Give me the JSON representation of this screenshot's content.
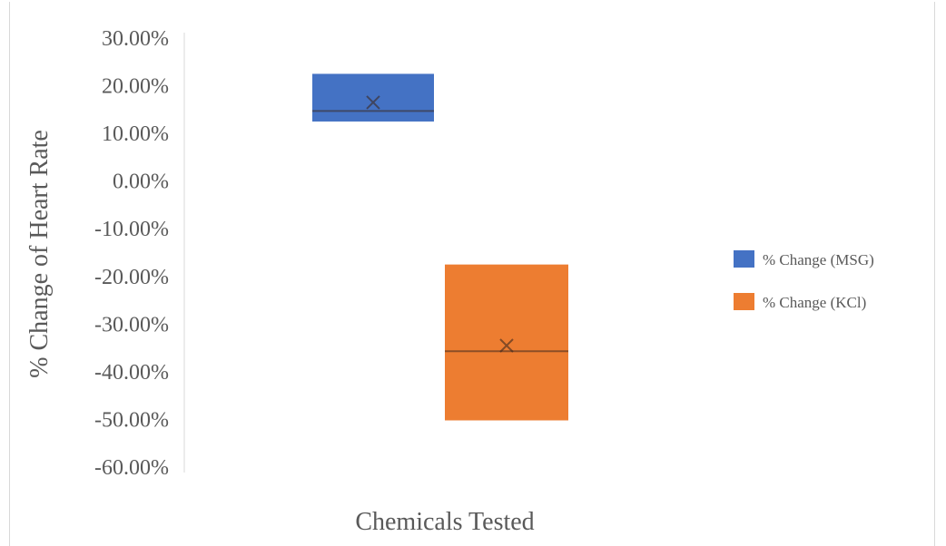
{
  "chart_data": {
    "type": "box",
    "title": "",
    "xlabel": "Chemicals Tested",
    "ylabel": "% Change of Heart Rate",
    "ylim": [
      -0.6,
      0.3
    ],
    "y_ticks": [
      "30.00%",
      "20.00%",
      "10.00%",
      "0.00%",
      "-10.00%",
      "-20.00%",
      "-30.00%",
      "-40.00%",
      "-50.00%",
      "-60.00%"
    ],
    "y_tick_values": [
      0.3,
      0.2,
      0.1,
      0.0,
      -0.1,
      -0.2,
      -0.3,
      -0.4,
      -0.5,
      -0.6
    ],
    "grid": false,
    "legend_position": "right",
    "series": [
      {
        "name": "% Change (MSG)",
        "color": "#4472c4",
        "min": 0.125,
        "q1": 0.125,
        "median": 0.147,
        "q3": 0.225,
        "max": 0.225,
        "mean": 0.165
      },
      {
        "name": "% Change (KCl)",
        "color": "#ed7d31",
        "min": -0.502,
        "q1": -0.502,
        "median": -0.357,
        "q3": -0.175,
        "max": -0.175,
        "mean": -0.345
      }
    ]
  }
}
